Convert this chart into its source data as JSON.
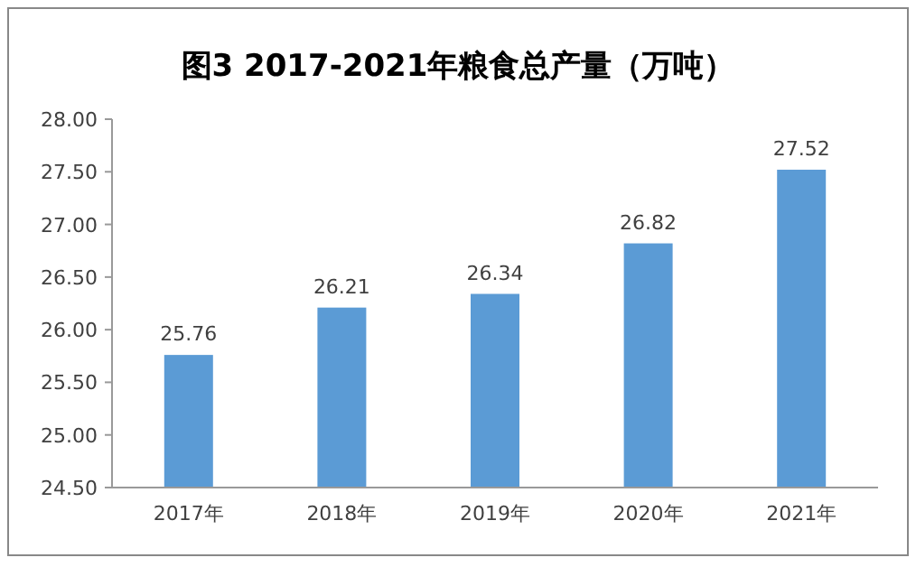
{
  "chart_data": {
    "type": "bar",
    "title": "图3  2017-2021年粮食总产量（万吨）",
    "categories": [
      "2017年",
      "2018年",
      "2019年",
      "2020年",
      "2021年"
    ],
    "values": [
      25.76,
      26.21,
      26.34,
      26.82,
      27.52
    ],
    "color": "#5b9bd5",
    "ylim": [
      24.5,
      28
    ],
    "yticks": [
      {
        "value": 24.5,
        "label": "24.50"
      },
      {
        "value": 25,
        "label": "25.00"
      },
      {
        "value": 25.5,
        "label": "25.50"
      },
      {
        "value": 26,
        "label": "26.00"
      },
      {
        "value": 26.5,
        "label": "26.50"
      },
      {
        "value": 27,
        "label": "27.00"
      },
      {
        "value": 27.5,
        "label": "27.50"
      },
      {
        "value": 28,
        "label": "28.00"
      }
    ],
    "data_labels": true
  }
}
